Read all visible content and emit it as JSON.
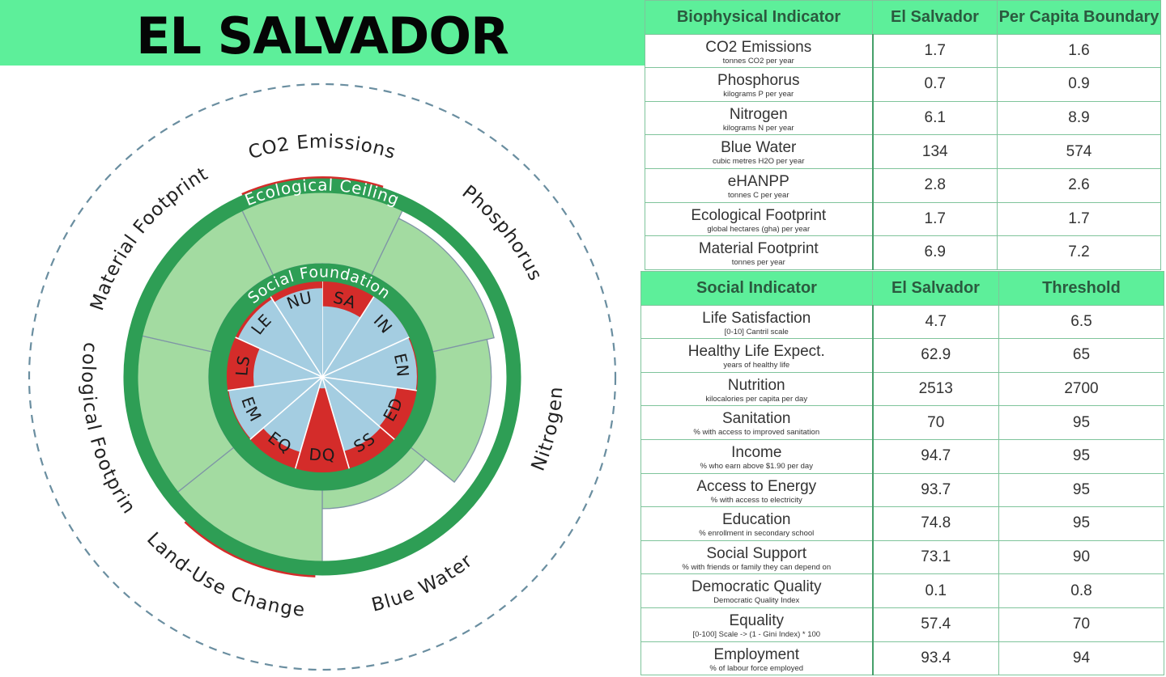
{
  "page": {
    "title": "EL SALVADOR"
  },
  "colors": {
    "banner": "#5def9a",
    "ring": "#2e9e55",
    "ecological_fill": "#a3dba1",
    "social_fill": "#a4cde1",
    "shortfall_overshoot_red": "#d42c2a",
    "dashed_circle": "#6a8ea0"
  },
  "chart_data": {
    "type": "doughnut",
    "rings": {
      "outer_label": "Ecological Ceiling",
      "inner_label": "Social Foundation"
    },
    "ecological_wedges": [
      {
        "label": "CO2 Emissions",
        "short": "CO2 Emissions",
        "ratio": 1.06
      },
      {
        "label": "Phosphorus",
        "short": "Phosphorus",
        "ratio": 0.78
      },
      {
        "label": "Nitrogen",
        "short": "Nitrogen",
        "ratio": 0.69
      },
      {
        "label": "Blue Water",
        "short": "Blue Water",
        "ratio": 0.23
      },
      {
        "label": "Land-Use Change",
        "short": "Land-Use Change",
        "ratio": 1.08
      },
      {
        "label": "Ecological Footprint",
        "short": "Ecological Footprint",
        "ratio": 1.0
      },
      {
        "label": "Material Footprint",
        "short": "Material Footprint",
        "ratio": 0.96
      }
    ],
    "social_wedges": [
      {
        "abbr": "SA",
        "ratio": 0.74
      },
      {
        "abbr": "IN",
        "ratio": 1.0
      },
      {
        "abbr": "EN",
        "ratio": 0.99
      },
      {
        "abbr": "ED",
        "ratio": 0.79
      },
      {
        "abbr": "SS",
        "ratio": 0.81
      },
      {
        "abbr": "DQ",
        "ratio": 0.12
      },
      {
        "abbr": "EQ",
        "ratio": 0.82
      },
      {
        "abbr": "EM",
        "ratio": 0.99
      },
      {
        "abbr": "LS",
        "ratio": 0.72
      },
      {
        "abbr": "LE",
        "ratio": 0.97
      },
      {
        "abbr": "NU",
        "ratio": 0.93
      }
    ]
  },
  "biophysical_table": {
    "headers": [
      "Biophysical Indicator",
      "El Salvador",
      "Per Capita Boundary"
    ],
    "rows": [
      {
        "name": "CO2 Emissions",
        "unit": "tonnes CO2 per year",
        "value": "1.7",
        "boundary": "1.6"
      },
      {
        "name": "Phosphorus",
        "unit": "kilograms P per year",
        "value": "0.7",
        "boundary": "0.9"
      },
      {
        "name": "Nitrogen",
        "unit": "kilograms N per year",
        "value": "6.1",
        "boundary": "8.9"
      },
      {
        "name": "Blue Water",
        "unit": "cubic metres H2O per year",
        "value": "134",
        "boundary": "574"
      },
      {
        "name": "eHANPP",
        "unit": "tonnes C per year",
        "value": "2.8",
        "boundary": "2.6"
      },
      {
        "name": "Ecological Footprint",
        "unit": "global hectares (gha) per year",
        "value": "1.7",
        "boundary": "1.7"
      },
      {
        "name": "Material Footprint",
        "unit": "tonnes per year",
        "value": "6.9",
        "boundary": "7.2"
      }
    ]
  },
  "social_table": {
    "headers": [
      "Social Indicator",
      "El Salvador",
      "Threshold"
    ],
    "rows": [
      {
        "name": "Life Satisfaction",
        "unit": "[0-10] Cantril scale",
        "value": "4.7",
        "threshold": "6.5"
      },
      {
        "name": "Healthy Life Expect.",
        "unit": "years of healthy life",
        "value": "62.9",
        "threshold": "65"
      },
      {
        "name": "Nutrition",
        "unit": "kilocalories per capita per day",
        "value": "2513",
        "threshold": "2700"
      },
      {
        "name": "Sanitation",
        "unit": "% with access to improved sanitation",
        "value": "70",
        "threshold": "95"
      },
      {
        "name": "Income",
        "unit": "% who earn above $1.90 per day",
        "value": "94.7",
        "threshold": "95"
      },
      {
        "name": "Access to Energy",
        "unit": "% with access to electricity",
        "value": "93.7",
        "threshold": "95"
      },
      {
        "name": "Education",
        "unit": "% enrollment in secondary school",
        "value": "74.8",
        "threshold": "95"
      },
      {
        "name": "Social Support",
        "unit": "% with friends or family they can depend on",
        "value": "73.1",
        "threshold": "90"
      },
      {
        "name": "Democratic Quality",
        "unit": "Democratic Quality Index",
        "value": "0.1",
        "threshold": "0.8"
      },
      {
        "name": "Equality",
        "unit": "[0-100] Scale -> (1 - Gini Index) * 100",
        "value": "57.4",
        "threshold": "70"
      },
      {
        "name": "Employment",
        "unit": "% of labour force employed",
        "value": "93.4",
        "threshold": "94"
      }
    ]
  }
}
